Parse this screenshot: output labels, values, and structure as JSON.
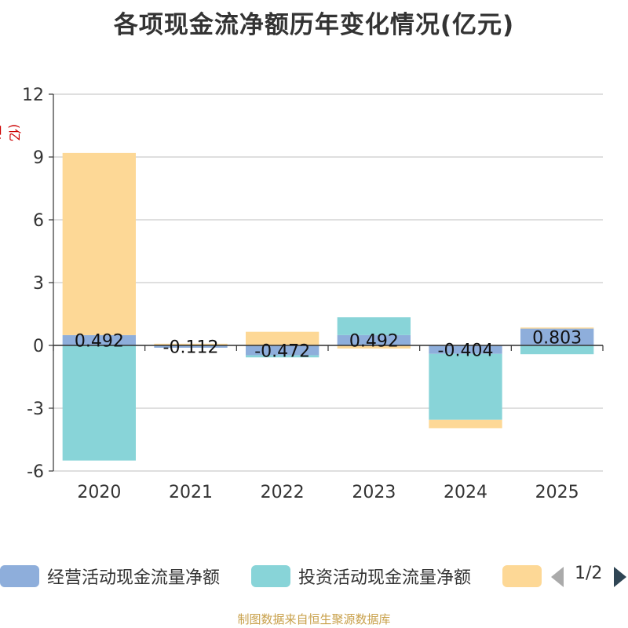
{
  "title": "各项现金流净额历年变化情况(亿元)",
  "unit_label": "(亿元)",
  "source": "制图数据来自恒生聚源数据库",
  "legend": {
    "items": [
      {
        "label": "经营活动现金流量净额",
        "color": "#8eaedb"
      },
      {
        "label": "投资活动现金流量净额",
        "color": "#88d4d8"
      },
      {
        "label": "",
        "color": "#fdd896"
      }
    ],
    "page_text": "1/2"
  },
  "chart_data": {
    "type": "bar",
    "stacked": true,
    "categories": [
      "2020",
      "2021",
      "2022",
      "2023",
      "2024",
      "2025"
    ],
    "series": [
      {
        "name": "经营活动现金流量净额",
        "color": "#8eaedb",
        "values": [
          0.492,
          -0.112,
          -0.472,
          0.492,
          -0.404,
          0.803
        ],
        "labels": [
          "0.492",
          "-0.112",
          "-0.472",
          "0.492",
          "-0.404",
          "0.803"
        ]
      },
      {
        "name": "投资活动现金流量净额",
        "color": "#88d4d8",
        "values": [
          -5.5,
          0.02,
          -0.1,
          0.85,
          -3.15,
          -0.42
        ]
      },
      {
        "name": "",
        "color": "#fdd896",
        "values": [
          8.7,
          0.06,
          0.65,
          -0.15,
          -0.4,
          0.05
        ]
      }
    ],
    "ylim": [
      -6,
      12
    ],
    "yticks": [
      -6,
      -3,
      0,
      3,
      6,
      9,
      12
    ],
    "grid": true,
    "legend_position": "bottom"
  }
}
